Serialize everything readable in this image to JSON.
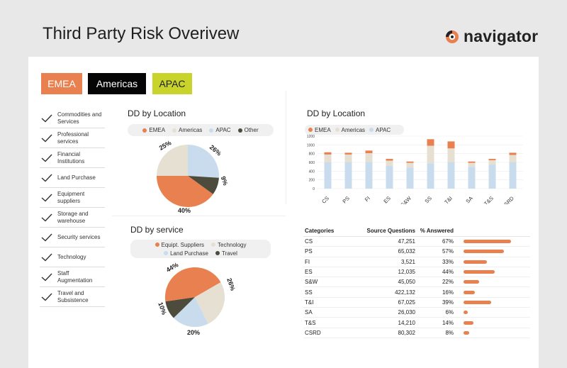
{
  "header": {
    "title": "Third Party Risk Overivew",
    "brand": "navigator"
  },
  "colors": {
    "emea": "#e8804f",
    "americas": "#e6e0d3",
    "apac": "#c9dced",
    "other": "#4d4c3c",
    "bar": "#e8804f"
  },
  "tabs": [
    {
      "label": "EMEA"
    },
    {
      "label": "Americas"
    },
    {
      "label": "APAC"
    }
  ],
  "filters": [
    {
      "label": "Commodities and Services",
      "checked": true
    },
    {
      "label": "Professional services",
      "checked": true
    },
    {
      "label": "Financial Institutions",
      "checked": true
    },
    {
      "label": "Land Purchase",
      "checked": true
    },
    {
      "label": "Equipment suppliers",
      "checked": true
    },
    {
      "label": "Storage and warehouse",
      "checked": true
    },
    {
      "label": "Security services",
      "checked": true
    },
    {
      "label": "Technology",
      "checked": true
    },
    {
      "label": "Staff Augmentation",
      "checked": true
    },
    {
      "label": "Travel and Subsistence",
      "checked": true
    }
  ],
  "pie_location": {
    "title": "DD by Location",
    "legend": [
      "EMEA",
      "Americas",
      "APAC",
      "Other"
    ],
    "labels": {
      "emea": "40%",
      "americas": "25%",
      "apac": "26%",
      "other": "9%"
    }
  },
  "pie_service": {
    "title": "DD by service",
    "legend": [
      "Equipt. Suppliers",
      "Technology",
      "Land Purchase",
      "Travel"
    ],
    "labels": {
      "equipt": "44%",
      "technology": "26%",
      "land": "20%",
      "travel": "10%"
    }
  },
  "bar_location": {
    "title": "DD by Location",
    "legend": [
      "EMEA",
      "Americas",
      "APAC"
    ]
  },
  "table": {
    "headers": {
      "category": "Categories",
      "source": "Source Questions",
      "pct": "% Answered"
    },
    "rows": [
      {
        "category": "CS",
        "source": "47,251",
        "pct": "67%",
        "value": 67
      },
      {
        "category": "PS",
        "source": "65,032",
        "pct": "57%",
        "value": 57
      },
      {
        "category": "FI",
        "source": "3,521",
        "pct": "33%",
        "value": 33
      },
      {
        "category": "ES",
        "source": "12,035",
        "pct": "44%",
        "value": 44
      },
      {
        "category": "S&W",
        "source": "45,050",
        "pct": "22%",
        "value": 22
      },
      {
        "category": "SS",
        "source": "422,132",
        "pct": "16%",
        "value": 16
      },
      {
        "category": "T&I",
        "source": "67,025",
        "pct": "39%",
        "value": 39
      },
      {
        "category": "SA",
        "source": "26,030",
        "pct": "6%",
        "value": 6
      },
      {
        "category": "T&S",
        "source": "14,210",
        "pct": "14%",
        "value": 14
      },
      {
        "category": "CSRD",
        "source": "80,302",
        "pct": "8%",
        "value": 8
      }
    ]
  },
  "chart_data": [
    {
      "type": "pie",
      "title": "DD by Location",
      "categories": [
        "EMEA",
        "Americas",
        "APAC",
        "Other"
      ],
      "values": [
        40,
        25,
        26,
        9
      ]
    },
    {
      "type": "pie",
      "title": "DD by service",
      "categories": [
        "Equipt. Suppliers",
        "Technology",
        "Land Purchase",
        "Travel"
      ],
      "values": [
        44,
        26,
        20,
        10
      ]
    },
    {
      "type": "bar",
      "stacked": true,
      "title": "DD by Location",
      "categories": [
        "CS",
        "PS",
        "FI",
        "ES",
        "S&W",
        "SS",
        "T&I",
        "SA",
        "T&S",
        "CSRD"
      ],
      "series": [
        {
          "name": "APAC",
          "values": [
            6000,
            6000,
            6100,
            5200,
            4800,
            5800,
            6000,
            5000,
            5500,
            6000
          ]
        },
        {
          "name": "Americas",
          "values": [
            1800,
            1800,
            2000,
            1200,
            1100,
            4000,
            3200,
            900,
            1000,
            1700
          ]
        },
        {
          "name": "EMEA",
          "values": [
            500,
            400,
            600,
            400,
            300,
            1500,
            1600,
            300,
            300,
            500
          ]
        }
      ],
      "yticks": [
        "0",
        "200",
        "400",
        "600",
        "800",
        "1000",
        "1200"
      ],
      "ylim": [
        0,
        12000
      ],
      "legend": "top-left"
    },
    {
      "type": "table",
      "columns": [
        "Categories",
        "Source Questions",
        "% Answered"
      ],
      "rows": [
        [
          "CS",
          47251,
          67
        ],
        [
          "PS",
          65032,
          57
        ],
        [
          "FI",
          3521,
          33
        ],
        [
          "ES",
          12035,
          44
        ],
        [
          "S&W",
          45050,
          22
        ],
        [
          "SS",
          422132,
          16
        ],
        [
          "T&I",
          67025,
          39
        ],
        [
          "SA",
          26030,
          6
        ],
        [
          "T&S",
          14210,
          14
        ],
        [
          "CSRD",
          80302,
          8
        ]
      ]
    }
  ]
}
